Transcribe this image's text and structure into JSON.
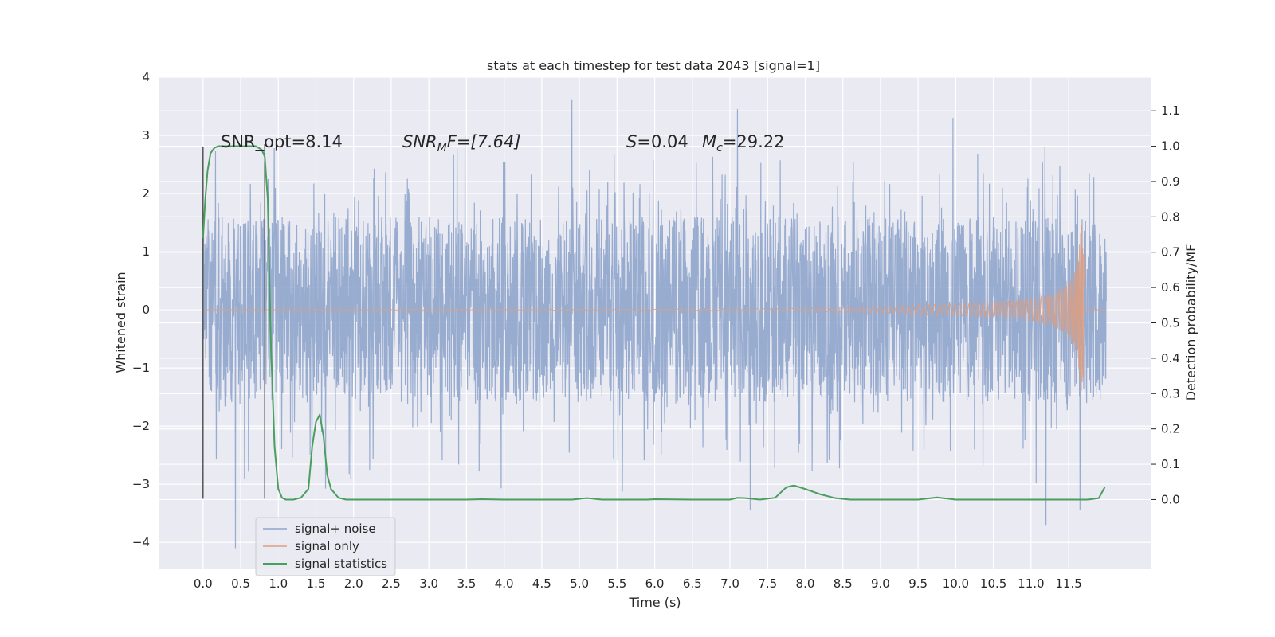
{
  "chart_data": {
    "type": "line",
    "title": "stats at each timestep for test data 2043 [signal=1]",
    "xlabel": "Time (s)",
    "ylabel_left": "Whitened strain",
    "ylabel_right": "Detection probability/MF",
    "xlim": [
      -0.58,
      12.6
    ],
    "ylim_left": [
      -4.45,
      4.0
    ],
    "ylim_right": [
      -0.195,
      1.195
    ],
    "grid": true,
    "legend_position": "lower-left",
    "x_ticks": [
      "0.0",
      "0.5",
      "1.0",
      "1.5",
      "2.0",
      "2.5",
      "3.0",
      "3.5",
      "4.0",
      "4.5",
      "5.0",
      "5.5",
      "6.0",
      "6.5",
      "7.0",
      "7.5",
      "8.0",
      "8.5",
      "9.0",
      "9.5",
      "10.0",
      "10.5",
      "11.0",
      "11.5"
    ],
    "x_tick_values": [
      0,
      0.5,
      1,
      1.5,
      2,
      2.5,
      3,
      3.5,
      4,
      4.5,
      5,
      5.5,
      6,
      6.5,
      7,
      7.5,
      8,
      8.5,
      9,
      9.5,
      10,
      10.5,
      11,
      11.5
    ],
    "y_left_ticks": [
      "4",
      "3",
      "2",
      "1",
      "0",
      "−1",
      "−2",
      "−3",
      "−4"
    ],
    "y_left_tick_values": [
      4,
      3,
      2,
      1,
      0,
      -1,
      -2,
      -3,
      -4
    ],
    "y_right_ticks": [
      "1.1",
      "1.0",
      "0.9",
      "0.8",
      "0.7",
      "0.6",
      "0.5",
      "0.4",
      "0.3",
      "0.2",
      "0.1",
      "0.0"
    ],
    "y_right_tick_values": [
      1.1,
      1.0,
      0.9,
      0.8,
      0.7,
      0.6,
      0.5,
      0.4,
      0.3,
      0.2,
      0.1,
      0.0
    ],
    "annotations": {
      "snr_opt": "SNR_opt=8.14",
      "snr_mf_prefix": "SNR",
      "snr_mf_sub": "M",
      "snr_mf_suffix": "F=[7.64]",
      "s_label": "S",
      "s_value": "=0.04",
      "mc_label": "M",
      "mc_sub": "c",
      "mc_value": "=29.22"
    },
    "series": [
      {
        "name": "signal+ noise",
        "color": "#8fa5cc",
        "axis": "left",
        "description_range": [
          0,
          12.0
        ],
        "typical_band": [
          -1.6,
          1.6
        ],
        "peaks": [
          {
            "x": 0.43,
            "y": -4.1
          },
          {
            "x": 4.9,
            "y": 3.62
          },
          {
            "x": 7.1,
            "y": 3.45
          },
          {
            "x": 11.2,
            "y": -3.7
          },
          {
            "x": 11.65,
            "y": -3.45
          }
        ]
      },
      {
        "name": "signal only",
        "color": "#dd9e80",
        "axis": "left",
        "x": [
          0,
          7.0,
          8.0,
          9.0,
          10.0,
          10.5,
          11.0,
          11.3,
          11.5,
          11.6,
          11.65,
          11.68,
          11.7,
          11.72,
          12.0
        ],
        "envelope": [
          0,
          0.01,
          0.03,
          0.06,
          0.1,
          0.13,
          0.18,
          0.28,
          0.45,
          0.7,
          1.2,
          1.6,
          0.9,
          0.1,
          0
        ]
      },
      {
        "name": "signal statistics",
        "color": "#4a9e5e",
        "axis": "right",
        "x": [
          0,
          0.03,
          0.06,
          0.1,
          0.15,
          0.2,
          0.3,
          0.5,
          0.7,
          0.78,
          0.82,
          0.86,
          0.9,
          0.95,
          1.0,
          1.05,
          1.1,
          1.2,
          1.3,
          1.4,
          1.45,
          1.5,
          1.55,
          1.6,
          1.65,
          1.7,
          1.8,
          1.9,
          2.0,
          2.5,
          3.0,
          3.5,
          3.7,
          4.0,
          4.5,
          4.9,
          5.1,
          5.3,
          5.5,
          5.9,
          6.0,
          6.5,
          7.0,
          7.1,
          7.2,
          7.4,
          7.6,
          7.75,
          7.85,
          8.0,
          8.2,
          8.4,
          8.6,
          9.0,
          9.5,
          9.75,
          10.0,
          10.5,
          11.0,
          11.5,
          11.75,
          11.9,
          11.98
        ],
        "y": [
          0.74,
          0.85,
          0.93,
          0.98,
          0.995,
          1.0,
          1.0,
          1.0,
          1.0,
          0.99,
          0.97,
          0.85,
          0.45,
          0.15,
          0.03,
          0.005,
          0.0,
          0.0,
          0.005,
          0.03,
          0.15,
          0.22,
          0.24,
          0.18,
          0.07,
          0.03,
          0.005,
          0.0,
          0.0,
          0.0,
          0.0,
          0.0,
          0.001,
          0.0,
          0.0,
          0.0,
          0.004,
          0.0,
          0.0,
          0.0,
          0.001,
          0.0,
          0.0,
          0.005,
          0.004,
          0.0,
          0.005,
          0.035,
          0.04,
          0.03,
          0.015,
          0.004,
          0.0,
          0.0,
          0.0,
          0.006,
          0.0,
          0.0,
          0.0,
          0.0,
          0.0,
          0.004,
          0.035
        ]
      }
    ],
    "vertical_markers": [
      {
        "x": 0.0,
        "y_top": 2.8,
        "y_bottom": -3.25,
        "color": "#555555"
      },
      {
        "x": 0.82,
        "y_top": 2.85,
        "y_bottom": -3.25,
        "color": "#555555"
      }
    ],
    "legend": [
      "signal+ noise",
      "signal only",
      "signal statistics"
    ]
  }
}
